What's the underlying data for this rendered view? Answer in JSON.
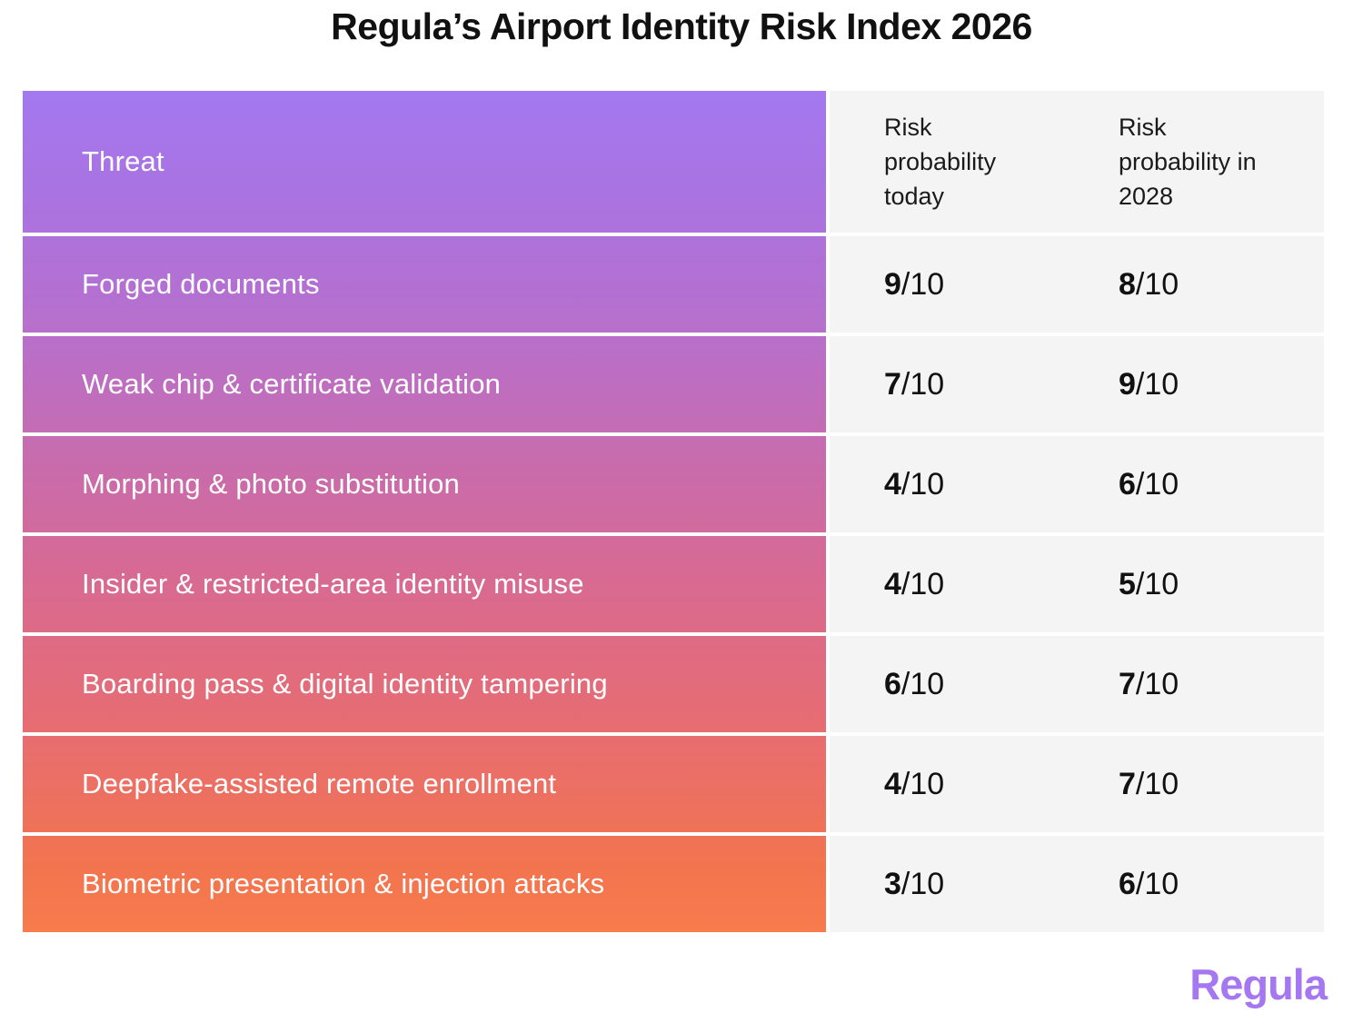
{
  "title": "Regula’s Airport Identity Risk Index 2026",
  "colors": {
    "gradient_top": "#a478f0",
    "gradient_bottom": "#f87b4d",
    "panel_gray": "#f4f4f4",
    "logo_purple": "#a577f0",
    "row_text": "#ffffff",
    "value_text": "#111111"
  },
  "table": {
    "header": {
      "threat": "Threat",
      "col_today": "Risk probability today",
      "col_2028": "Risk probability in 2028"
    },
    "unit": "/10",
    "rows": [
      {
        "threat": "Forged documents",
        "today": "9",
        "in_2028": "8"
      },
      {
        "threat": "Weak chip & certificate validation",
        "today": "7",
        "in_2028": "9"
      },
      {
        "threat": "Morphing & photo substitution",
        "today": "4",
        "in_2028": "6"
      },
      {
        "threat": "Insider & restricted-area identity misuse",
        "today": "4",
        "in_2028": "5"
      },
      {
        "threat": "Boarding pass & digital identity tampering",
        "today": "6",
        "in_2028": "7"
      },
      {
        "threat": "Deepfake-assisted remote enrollment",
        "today": "4",
        "in_2028": "7"
      },
      {
        "threat": "Biometric presentation & injection attacks",
        "today": "3",
        "in_2028": "6"
      }
    ]
  },
  "chart_data": {
    "type": "table",
    "title": "Regula’s Airport Identity Risk Index 2026",
    "columns": [
      "Threat",
      "Risk probability today",
      "Risk probability in 2028"
    ],
    "rows": [
      [
        "Forged documents",
        "9/10",
        "8/10"
      ],
      [
        "Weak chip & certificate validation",
        "7/10",
        "9/10"
      ],
      [
        "Morphing & photo substitution",
        "4/10",
        "6/10"
      ],
      [
        "Insider & restricted-area identity misuse",
        "4/10",
        "5/10"
      ],
      [
        "Boarding pass & digital identity tampering",
        "6/10",
        "7/10"
      ],
      [
        "Deepfake-assisted remote enrollment",
        "4/10",
        "7/10"
      ],
      [
        "Biometric presentation & injection attacks",
        "3/10",
        "6/10"
      ]
    ]
  },
  "logo": {
    "text": "Regula"
  }
}
